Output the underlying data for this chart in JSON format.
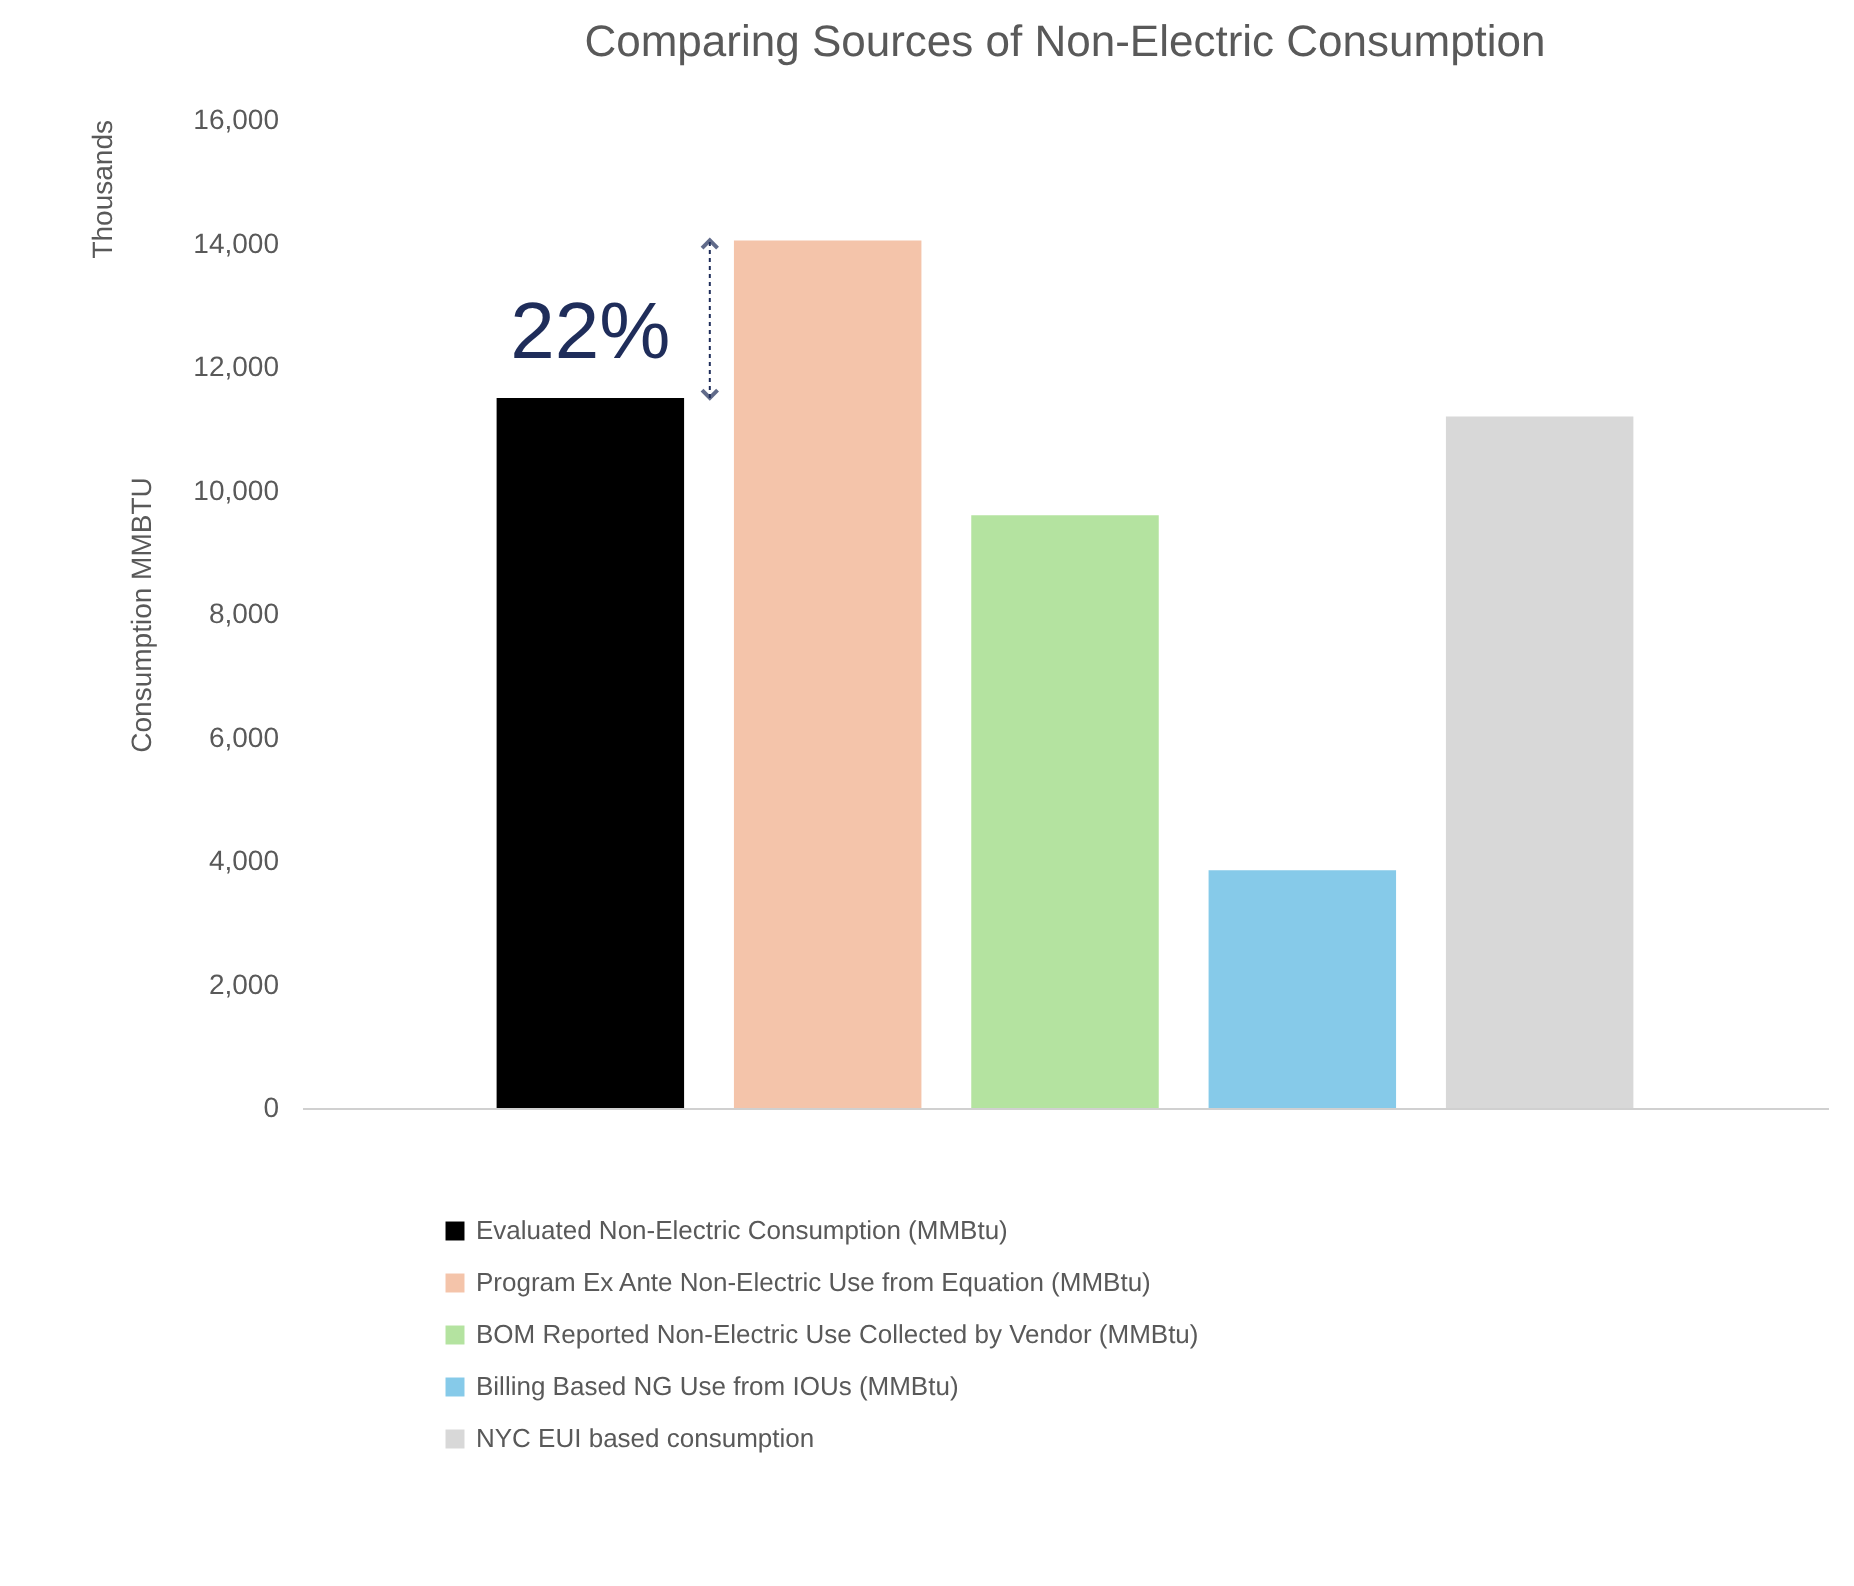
{
  "chart_data": {
    "type": "bar",
    "title": "Comparing Sources of Non-Electric  Consumption",
    "ylabel": "Consumption MMBTU",
    "categories": [
      null
    ],
    "series": [
      {
        "name": "Evaluated Non-Electric Consumption  (MMBtu)",
        "color": "#000000",
        "values": [
          11500
        ]
      },
      {
        "name": "Program Ex Ante Non-Electric Use from Equation (MMBtu)",
        "color": "#f4c4aa",
        "values": [
          14050
        ]
      },
      {
        "name": "BOM Reported Non-Electric Use Collected by Vendor (MMBtu)",
        "color": "#b4e3a0",
        "values": [
          9600
        ]
      },
      {
        "name": "Billing Based NG Use from IOUs  (MMBtu)",
        "color": "#86cae9",
        "values": [
          3850
        ]
      },
      {
        "name": "NYC EUI based consumption",
        "color": "#d8d8d8",
        "values": [
          11200
        ]
      }
    ],
    "ylim": [
      0,
      16000
    ],
    "yticks": [
      0,
      {
        "value": 2000,
        "label": "2,000"
      },
      {
        "value": 4000,
        "label": "4,000"
      },
      {
        "value": 6000,
        "label": "6,000"
      },
      {
        "value": 8000,
        "label": "8,000"
      },
      {
        "value": 10000,
        "label": "10,000"
      },
      {
        "value": 12000,
        "label": "12,000"
      },
      {
        "value": 14000,
        "label": "14,000"
      },
      {
        "value": 16000,
        "label": "16,000"
      }
    ],
    "annotations": [
      "22%",
      "Thousands"
    ],
    "grid": false,
    "legend": "bottom"
  }
}
